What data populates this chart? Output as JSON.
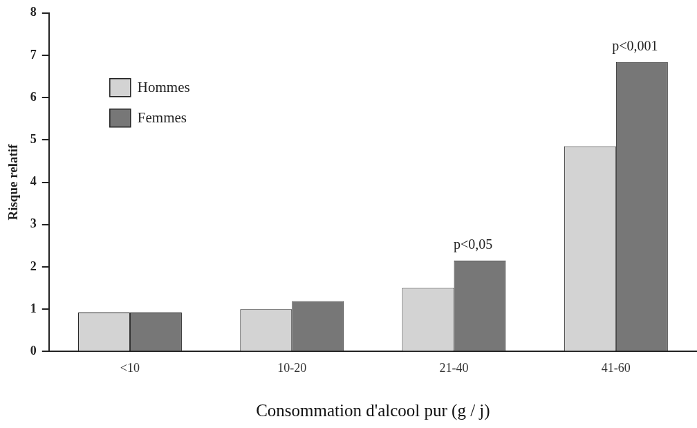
{
  "chart_data": {
    "type": "bar",
    "xlabel": "Consommation d'alcool pur (g / j)",
    "ylabel": "Risque relatif",
    "categories": [
      "<10",
      "10-20",
      "21-40",
      "41-60"
    ],
    "series": [
      {
        "name": "Hommes",
        "color": "#d3d3d3",
        "values": [
          0.92,
          1.0,
          1.5,
          4.85
        ]
      },
      {
        "name": "Femmes",
        "color": "#777777",
        "values": [
          0.92,
          1.19,
          2.15,
          6.84
        ]
      }
    ],
    "ylim": [
      0,
      8
    ],
    "yticks": [
      0,
      1,
      2,
      3,
      4,
      5,
      6,
      7,
      8
    ],
    "grid": false,
    "legend": "top left",
    "annotations": [
      {
        "text": "p<0,05",
        "x": "21-40",
        "y": 2.15
      },
      {
        "text": "p<0,001",
        "x": "41-60",
        "y": 6.84
      }
    ]
  }
}
